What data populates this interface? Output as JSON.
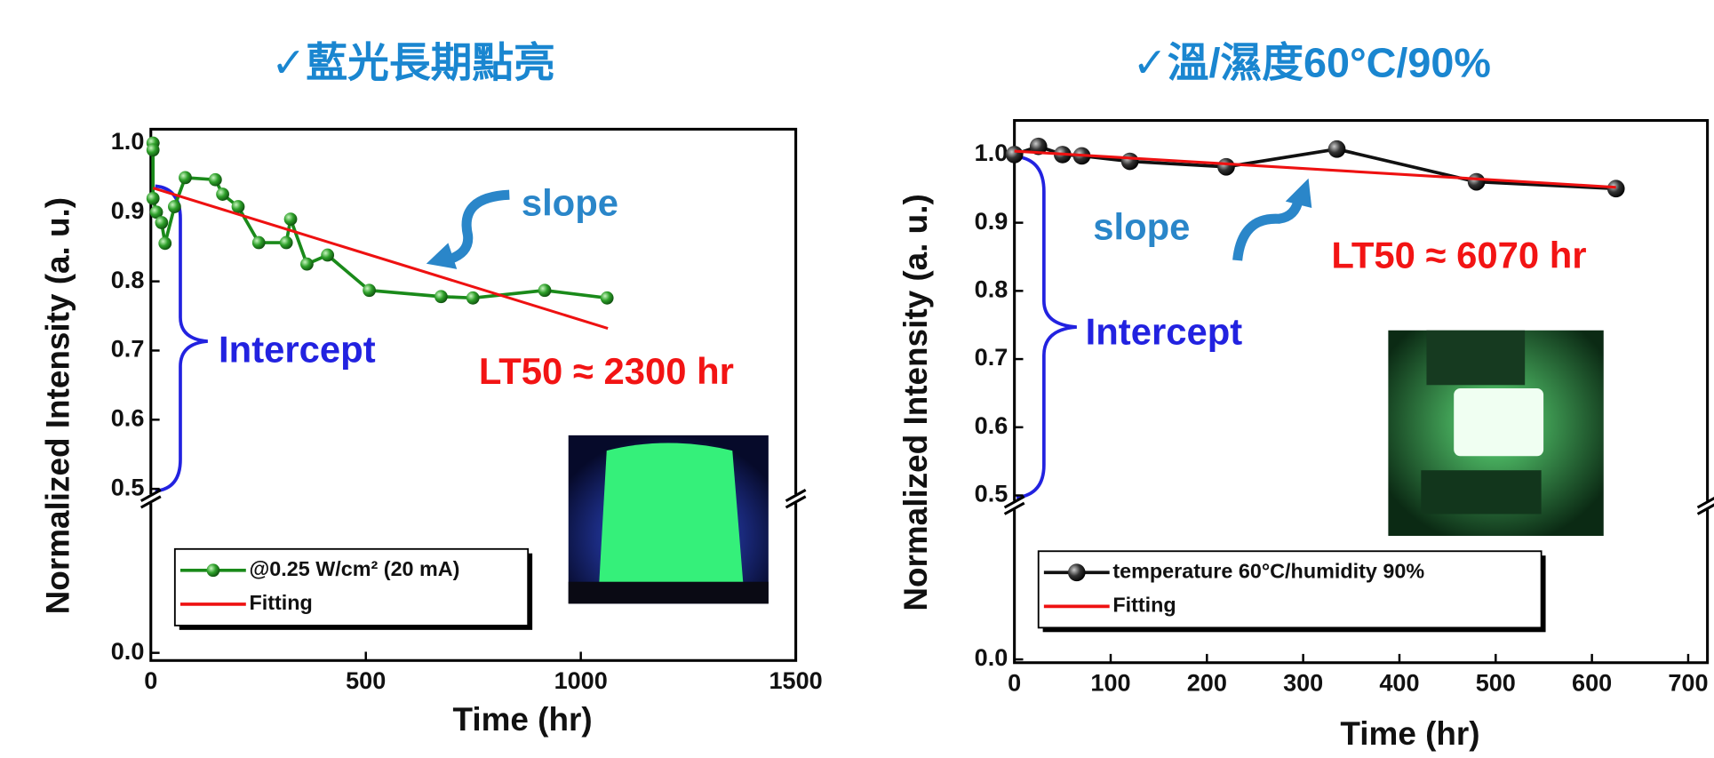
{
  "chart_data": [
    {
      "type": "line",
      "title": "✓藍光長期點亮",
      "xlabel": "Time (hr)",
      "ylabel": "Normalized Intensity (a. u.)",
      "slope_label": "slope",
      "intercept_label": "Intercept",
      "lt50_label": "LT50 ≈ 2300 hr",
      "xlim": [
        0,
        1500
      ],
      "xticks": [
        0,
        500,
        1000,
        1500
      ],
      "ylim": [
        0,
        1.02
      ],
      "yticks": [
        {
          "value": 0,
          "label": "0.0"
        },
        0.5,
        0.6,
        0.7,
        0.8,
        0.9,
        {
          "value": 1,
          "label": "1.0"
        }
      ],
      "axis_break": true,
      "legend": "lower left",
      "series": [
        {
          "name": "@0.25 W/cm² (20 mA)",
          "color": "#1a8a1a",
          "markers": true,
          "x": [
            5,
            5,
            5,
            13,
            25,
            33,
            55,
            80,
            150,
            167,
            203,
            251,
            315,
            325,
            363,
            411,
            508,
            675,
            749,
            916,
            1061
          ],
          "values": [
            1.0,
            0.99,
            0.92,
            0.9,
            0.885,
            0.855,
            0.908,
            0.95,
            0.947,
            0.926,
            0.908,
            0.856,
            0.856,
            0.89,
            0.825,
            0.838,
            0.787,
            0.778,
            0.776,
            0.787,
            0.776
          ]
        },
        {
          "name": "Fitting",
          "color": "#ee1111",
          "markers": false,
          "x": [
            5,
            1063
          ],
          "values": [
            0.935,
            0.732
          ]
        }
      ]
    },
    {
      "type": "line",
      "title": "✓溫/濕度60°C/90%",
      "xlabel": "Time (hr)",
      "ylabel": "Normalized Intensity (a. u.)",
      "slope_label": "slope",
      "intercept_label": "Intercept",
      "lt50_label": "LT50 ≈ 6070 hr",
      "xlim": [
        0,
        720
      ],
      "xticks": [
        0,
        100,
        200,
        300,
        400,
        500,
        600,
        700
      ],
      "ylim": [
        0,
        1.05
      ],
      "yticks": [
        {
          "value": 0,
          "label": "0.0"
        },
        0.5,
        0.6,
        0.7,
        0.8,
        0.9,
        {
          "value": 1,
          "label": "1.0"
        }
      ],
      "axis_break": true,
      "legend": "lower left",
      "series": [
        {
          "name": "temperature 60°C/humidity 90%",
          "color": "#111111",
          "markers": true,
          "x": [
            0,
            25,
            50,
            70,
            120,
            220,
            335,
            480,
            625
          ],
          "values": [
            1.0,
            1.012,
            1.0,
            0.998,
            0.99,
            0.982,
            1.008,
            0.96,
            0.95
          ]
        },
        {
          "name": "Fitting",
          "color": "#ee1111",
          "markers": false,
          "x": [
            0,
            625
          ],
          "values": [
            1.005,
            0.952
          ]
        }
      ]
    }
  ]
}
